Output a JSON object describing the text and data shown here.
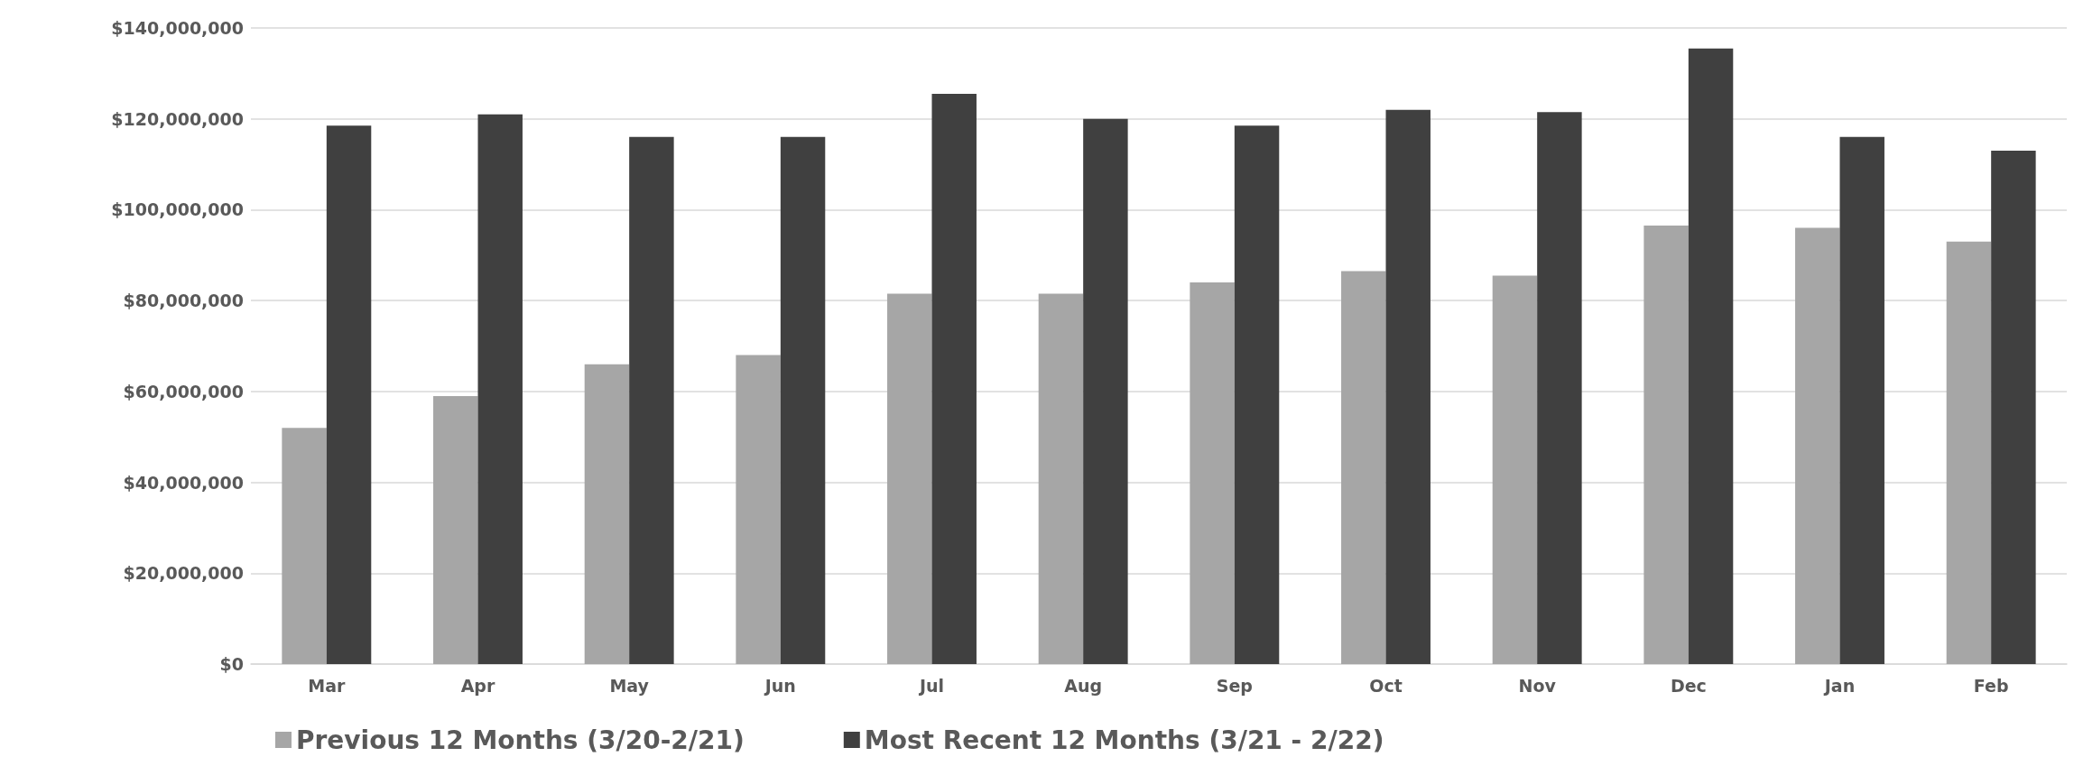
{
  "chart_data": {
    "type": "bar",
    "categories": [
      "Mar",
      "Apr",
      "May",
      "Jun",
      "Jul",
      "Aug",
      "Sep",
      "Oct",
      "Nov",
      "Dec",
      "Jan",
      "Feb"
    ],
    "series": [
      {
        "name": "Previous 12 Months (3/20-2/21)",
        "color": "#a6a6a6",
        "values": [
          52000000,
          59000000,
          66000000,
          68000000,
          81500000,
          81500000,
          84000000,
          86500000,
          85500000,
          96500000,
          96000000,
          93000000
        ]
      },
      {
        "name": "Most Recent 12 Months (3/21 - 2/22)",
        "color": "#404040",
        "values": [
          118500000,
          121000000,
          116000000,
          116000000,
          125500000,
          120000000,
          118500000,
          122000000,
          121500000,
          135500000,
          116000000,
          113000000
        ]
      }
    ],
    "ylim": [
      0,
      140000000
    ],
    "yticks": [
      {
        "value": 0,
        "label": "$0"
      },
      {
        "value": 20000000,
        "label": "$20,000,000"
      },
      {
        "value": 40000000,
        "label": "$40,000,000"
      },
      {
        "value": 60000000,
        "label": "$60,000,000"
      },
      {
        "value": 80000000,
        "label": "$80,000,000"
      },
      {
        "value": 100000000,
        "label": "$100,000,000"
      },
      {
        "value": 120000000,
        "label": "$120,000,000"
      },
      {
        "value": 140000000,
        "label": "$140,000,000"
      }
    ],
    "grid": "y",
    "legend": "bottom"
  }
}
